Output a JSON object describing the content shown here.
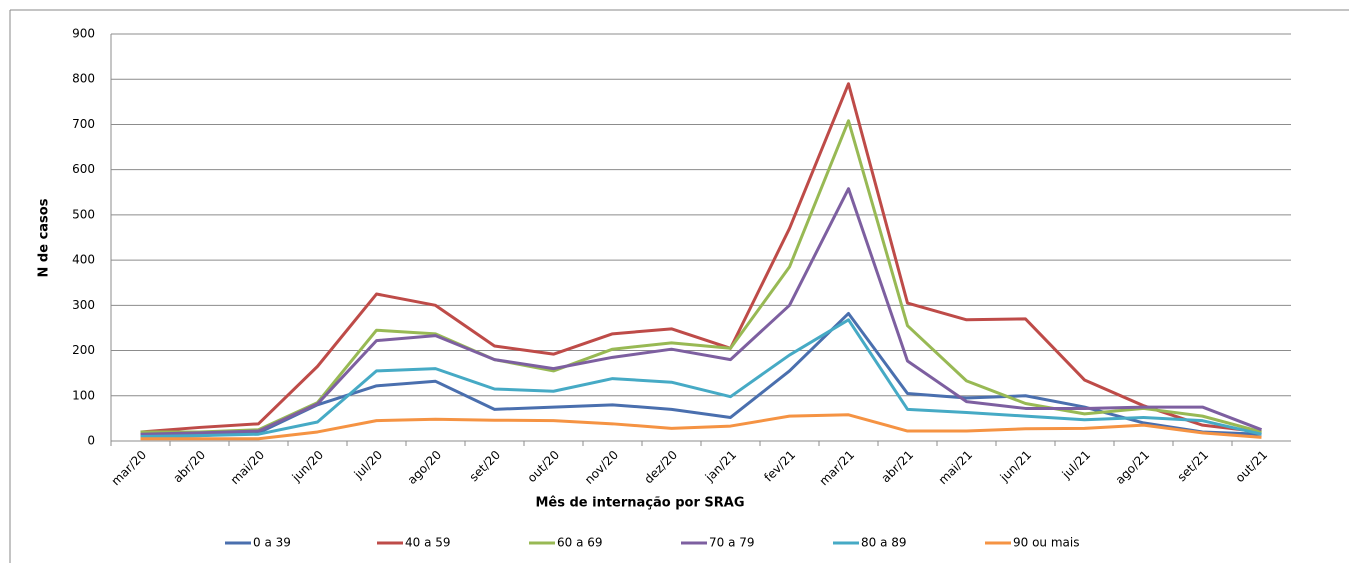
{
  "chart_data": {
    "type": "line",
    "y_label": "N de casos",
    "x_label": "Mês de internação por SRAG",
    "categories": [
      "mar/20",
      "abr/20",
      "mai/20",
      "jun/20",
      "jul/20",
      "ago/20",
      "set/20",
      "out/20",
      "nov/20",
      "dez/20",
      "jan/21",
      "fev/21",
      "mar/21",
      "abr/21",
      "mai/21",
      "jun/21",
      "jul/21",
      "ago/21",
      "set/21",
      "out/21"
    ],
    "series": [
      {
        "name": "0 a 39",
        "color": "#4a6fae",
        "values": [
          10,
          12,
          18,
          80,
          122,
          132,
          70,
          75,
          80,
          70,
          52,
          155,
          282,
          105,
          95,
          100,
          75,
          40,
          20,
          15
        ]
      },
      {
        "name": "40 a 59",
        "color": "#be4b48",
        "values": [
          20,
          30,
          38,
          165,
          325,
          300,
          210,
          192,
          237,
          248,
          205,
          470,
          790,
          305,
          268,
          270,
          135,
          78,
          35,
          20
        ]
      },
      {
        "name": "60 a 69",
        "color": "#98b954",
        "values": [
          20,
          20,
          25,
          85,
          245,
          237,
          180,
          155,
          203,
          217,
          205,
          385,
          708,
          255,
          133,
          83,
          60,
          72,
          55,
          20
        ]
      },
      {
        "name": "70 a 79",
        "color": "#7d5fa0",
        "values": [
          15,
          18,
          22,
          82,
          222,
          233,
          180,
          160,
          185,
          203,
          180,
          300,
          558,
          177,
          87,
          72,
          72,
          75,
          75,
          25
        ]
      },
      {
        "name": "80 a 89",
        "color": "#46aac5",
        "values": [
          10,
          12,
          15,
          42,
          155,
          160,
          115,
          110,
          138,
          130,
          98,
          190,
          268,
          70,
          63,
          55,
          47,
          52,
          45,
          15
        ]
      },
      {
        "name": "90 ou mais",
        "color": "#f59343",
        "values": [
          5,
          5,
          5,
          20,
          45,
          48,
          46,
          45,
          38,
          28,
          33,
          55,
          58,
          22,
          22,
          27,
          28,
          35,
          18,
          8
        ]
      }
    ],
    "ylim": [
      0,
      900
    ],
    "yticks": [
      0,
      100,
      200,
      300,
      400,
      500,
      600,
      700,
      800,
      900
    ],
    "grid": true,
    "legend": "bottom"
  }
}
